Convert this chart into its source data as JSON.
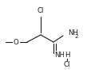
{
  "bg_color": "#ffffff",
  "line_color": "#1a1a1a",
  "text_color": "#1a1a1a",
  "figsize": [
    1.09,
    0.92
  ],
  "dpi": 100,
  "xlim": [
    0,
    109
  ],
  "ylim": [
    0,
    92
  ]
}
